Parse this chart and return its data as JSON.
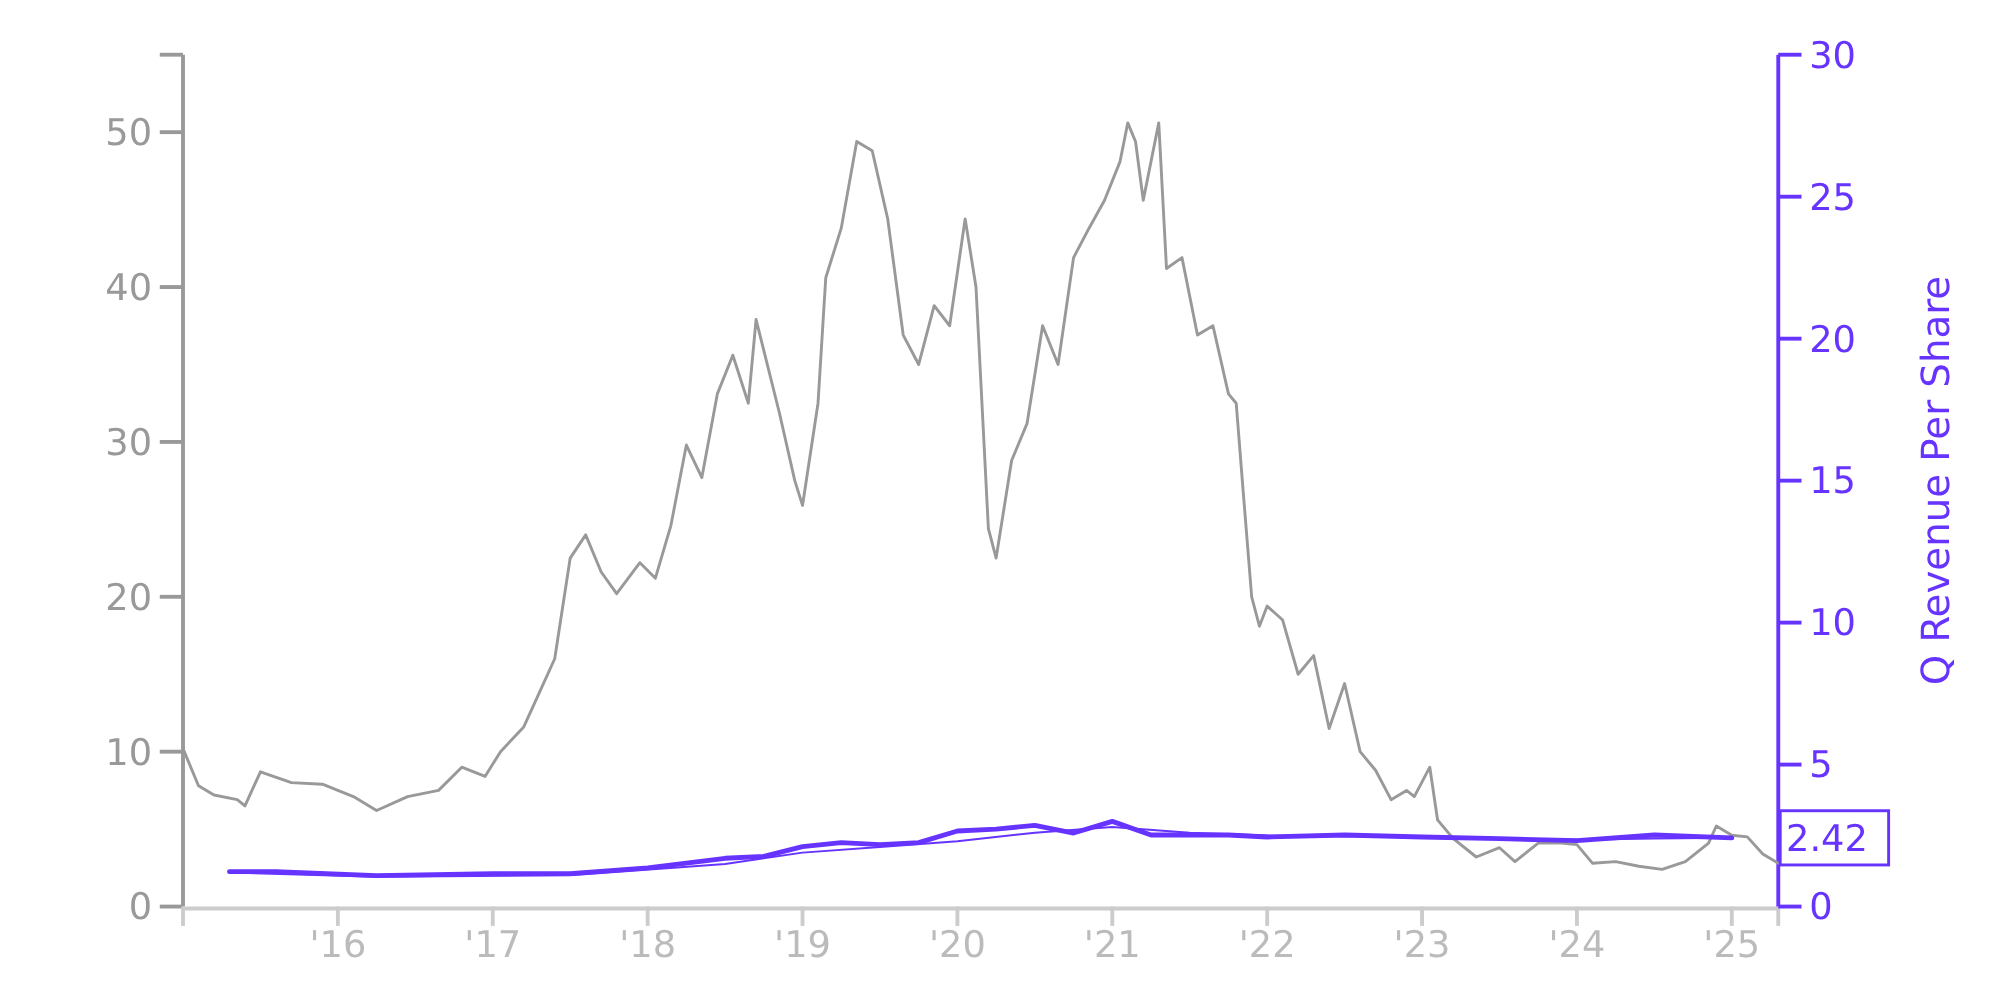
{
  "chart_data": {
    "type": "line",
    "y2label": "Q Revenue Per Share",
    "xlim": [
      2015.0,
      2025.3
    ],
    "ylim": [
      0,
      55
    ],
    "y2lim": [
      0,
      30
    ],
    "xticks": [
      {
        "value": 2016,
        "label": "'16"
      },
      {
        "value": 2017,
        "label": "'17"
      },
      {
        "value": 2018,
        "label": "'18"
      },
      {
        "value": 2019,
        "label": "'19"
      },
      {
        "value": 2020,
        "label": "'20"
      },
      {
        "value": 2021,
        "label": "'21"
      },
      {
        "value": 2022,
        "label": "'22"
      },
      {
        "value": 2023,
        "label": "'23"
      },
      {
        "value": 2024,
        "label": "'24"
      },
      {
        "value": 2025,
        "label": "'25"
      }
    ],
    "yticks": [
      0,
      10,
      20,
      30,
      40,
      50
    ],
    "y2ticks": [
      0,
      5,
      10,
      15,
      20,
      25,
      30
    ],
    "grid": false,
    "annotations": [
      "2.42"
    ],
    "series": [
      {
        "color": "#999999",
        "x": [
          2015.0,
          2015.1,
          2015.2,
          2015.35,
          2015.4,
          2015.5,
          2015.7,
          2015.9,
          2016.1,
          2016.25,
          2016.45,
          2016.65,
          2016.8,
          2016.95,
          2017.05,
          2017.2,
          2017.3,
          2017.4,
          2017.5,
          2017.6,
          2017.7,
          2017.8,
          2017.95,
          2018.05,
          2018.15,
          2018.25,
          2018.35,
          2018.45,
          2018.55,
          2018.65,
          2018.7,
          2018.85,
          2018.95,
          2019.0,
          2019.1,
          2019.15,
          2019.25,
          2019.35,
          2019.45,
          2019.55,
          2019.65,
          2019.75,
          2019.85,
          2019.95,
          2020.05,
          2020.12,
          2020.2,
          2020.25,
          2020.35,
          2020.45,
          2020.55,
          2020.65,
          2020.75,
          2020.85,
          2020.95,
          2021.05,
          2021.1,
          2021.15,
          2021.2,
          2021.3,
          2021.35,
          2021.45,
          2021.55,
          2021.65,
          2021.75,
          2021.8,
          2021.85,
          2021.9,
          2021.95,
          2022.0,
          2022.1,
          2022.2,
          2022.3,
          2022.4,
          2022.5,
          2022.6,
          2022.7,
          2022.8,
          2022.9,
          2022.95,
          2023.05,
          2023.1,
          2023.2,
          2023.35,
          2023.5,
          2023.6,
          2023.75,
          2023.9,
          2024.0,
          2024.1,
          2024.25,
          2024.4,
          2024.55,
          2024.7,
          2024.85,
          2024.9,
          2025.0,
          2025.1,
          2025.2,
          2025.3
        ],
        "values": [
          10.2,
          7.8,
          7.2,
          6.9,
          6.5,
          8.7,
          8.0,
          7.9,
          7.1,
          6.2,
          7.1,
          7.5,
          9.0,
          8.4,
          10.0,
          11.6,
          13.8,
          16.0,
          22.5,
          24.0,
          21.6,
          20.2,
          22.2,
          21.2,
          24.6,
          29.8,
          27.7,
          33.1,
          35.6,
          32.5,
          37.9,
          31.9,
          27.5,
          25.9,
          32.5,
          40.6,
          43.8,
          49.4,
          48.8,
          44.4,
          36.9,
          35.0,
          38.8,
          37.5,
          44.4,
          40.0,
          24.4,
          22.5,
          28.8,
          31.2,
          37.5,
          35.0,
          41.9,
          43.8,
          45.6,
          48.1,
          50.6,
          49.4,
          45.6,
          50.6,
          41.2,
          41.9,
          36.9,
          37.5,
          33.1,
          32.5,
          26.2,
          20.0,
          18.1,
          19.4,
          18.5,
          15.0,
          16.2,
          11.5,
          14.4,
          10.0,
          8.8,
          6.9,
          7.5,
          7.1,
          9.0,
          5.6,
          4.4,
          3.2,
          3.8,
          2.9,
          4.1,
          4.1,
          4.0,
          2.8,
          2.9,
          2.6,
          2.4,
          2.9,
          4.1,
          5.2,
          4.6,
          4.5,
          3.4,
          2.8
        ]
      },
      {
        "color": "#6633ff",
        "axis": "y2",
        "x": [
          2015.3,
          2015.6,
          2016.25,
          2017.0,
          2017.5,
          2018.0,
          2018.5,
          2018.75,
          2019.0,
          2019.25,
          2019.5,
          2019.75,
          2020.0,
          2020.25,
          2020.5,
          2020.75,
          2021.0,
          2021.25,
          2021.5,
          2021.75,
          2022.0,
          2022.5,
          2023.0,
          2023.5,
          2024.0,
          2024.5,
          2025.0
        ],
        "values": [
          1.23,
          1.23,
          1.09,
          1.16,
          1.16,
          1.36,
          1.7,
          1.77,
          2.11,
          2.25,
          2.18,
          2.25,
          2.66,
          2.73,
          2.86,
          2.59,
          3.0,
          2.52,
          2.52,
          2.52,
          2.45,
          2.52,
          2.45,
          2.39,
          2.32,
          2.52,
          2.42
        ]
      },
      {
        "color": "#6633ff",
        "axis": "y2",
        "x": [
          2015.3,
          2016.25,
          2017.5,
          2018.5,
          2019.0,
          2019.5,
          2020.0,
          2020.5,
          2021.0,
          2021.5,
          2022.0,
          2023.0,
          2024.0,
          2024.5,
          2025.0
        ],
        "values": [
          1.2,
          1.05,
          1.1,
          1.5,
          1.9,
          2.1,
          2.3,
          2.6,
          2.8,
          2.6,
          2.5,
          2.45,
          2.35,
          2.4,
          2.42
        ]
      }
    ]
  }
}
